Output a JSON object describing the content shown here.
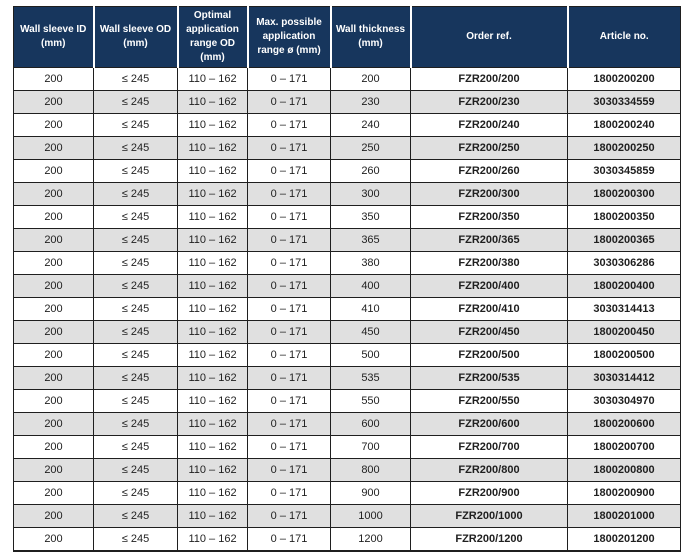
{
  "table": {
    "columns": [
      {
        "label": "Wall sleeve ID (mm)"
      },
      {
        "label": "Wall sleeve OD (mm)"
      },
      {
        "label": "Optimal application range OD (mm)"
      },
      {
        "label": "Max. possible application range ø (mm)"
      },
      {
        "label": "Wall thickness (mm)"
      },
      {
        "label": "Order ref."
      },
      {
        "label": "Article no."
      }
    ],
    "rows": [
      [
        "200",
        "≤ 245",
        "110 – 162",
        "0 – 171",
        "200",
        "FZR200/200",
        "1800200200"
      ],
      [
        "200",
        "≤ 245",
        "110 – 162",
        "0 – 171",
        "230",
        "FZR200/230",
        "3030334559"
      ],
      [
        "200",
        "≤ 245",
        "110 – 162",
        "0 – 171",
        "240",
        "FZR200/240",
        "1800200240"
      ],
      [
        "200",
        "≤ 245",
        "110 – 162",
        "0 – 171",
        "250",
        "FZR200/250",
        "1800200250"
      ],
      [
        "200",
        "≤ 245",
        "110 – 162",
        "0 – 171",
        "260",
        "FZR200/260",
        "3030345859"
      ],
      [
        "200",
        "≤ 245",
        "110 – 162",
        "0 – 171",
        "300",
        "FZR200/300",
        "1800200300"
      ],
      [
        "200",
        "≤ 245",
        "110 – 162",
        "0 – 171",
        "350",
        "FZR200/350",
        "1800200350"
      ],
      [
        "200",
        "≤ 245",
        "110 – 162",
        "0 – 171",
        "365",
        "FZR200/365",
        "1800200365"
      ],
      [
        "200",
        "≤ 245",
        "110 – 162",
        "0 – 171",
        "380",
        "FZR200/380",
        "3030306286"
      ],
      [
        "200",
        "≤ 245",
        "110 – 162",
        "0 – 171",
        "400",
        "FZR200/400",
        "1800200400"
      ],
      [
        "200",
        "≤ 245",
        "110 – 162",
        "0 – 171",
        "410",
        "FZR200/410",
        "3030314413"
      ],
      [
        "200",
        "≤ 245",
        "110 – 162",
        "0 – 171",
        "450",
        "FZR200/450",
        "1800200450"
      ],
      [
        "200",
        "≤ 245",
        "110 – 162",
        "0 – 171",
        "500",
        "FZR200/500",
        "1800200500"
      ],
      [
        "200",
        "≤ 245",
        "110 – 162",
        "0 – 171",
        "535",
        "FZR200/535",
        "3030314412"
      ],
      [
        "200",
        "≤ 245",
        "110 – 162",
        "0 – 171",
        "550",
        "FZR200/550",
        "3030304970"
      ],
      [
        "200",
        "≤ 245",
        "110 – 162",
        "0 – 171",
        "600",
        "FZR200/600",
        "1800200600"
      ],
      [
        "200",
        "≤ 245",
        "110 – 162",
        "0 – 171",
        "700",
        "FZR200/700",
        "1800200700"
      ],
      [
        "200",
        "≤ 245",
        "110 – 162",
        "0 – 171",
        "800",
        "FZR200/800",
        "1800200800"
      ],
      [
        "200",
        "≤ 245",
        "110 – 162",
        "0 – 171",
        "900",
        "FZR200/900",
        "1800200900"
      ],
      [
        "200",
        "≤ 245",
        "110 – 162",
        "0 – 171",
        "1000",
        "FZR200/1000",
        "1800201000"
      ],
      [
        "200",
        "≤ 245",
        "110 – 162",
        "0 – 171",
        "1200",
        "FZR200/1200",
        "1800201200"
      ]
    ]
  },
  "colors": {
    "header_bg": "#17365d",
    "header_text": "#ffffff",
    "alt_row_bg": "#e0e0e0",
    "border": "#1f1f1f",
    "cell_text": "#1f1f1f"
  }
}
